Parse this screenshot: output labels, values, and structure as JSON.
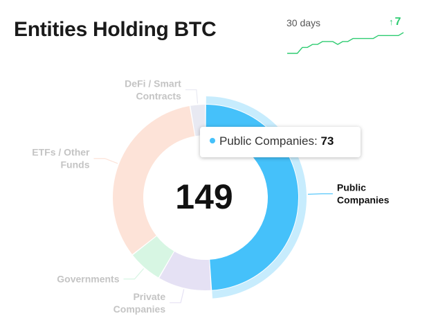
{
  "card": {
    "title": "Entities Holding BTC",
    "total": "149"
  },
  "sparkline": {
    "label": "30 days",
    "change": "7",
    "change_arrow": "↑",
    "color": "#2ecc71",
    "values": [
      142,
      142,
      142,
      144,
      144,
      145,
      145,
      146,
      146,
      146,
      145,
      146,
      146,
      147,
      147,
      147,
      147,
      147,
      148,
      148,
      148,
      148,
      148,
      149
    ]
  },
  "chart_data": {
    "type": "pie",
    "title": "Entities Holding BTC",
    "total": 149,
    "highlighted": "Public Companies",
    "series": [
      {
        "name": "Public Companies",
        "label_lines": [
          "Public",
          "Companies"
        ],
        "value": 73,
        "color": "#45c1fa",
        "label_color": "#111111"
      },
      {
        "name": "Private Companies",
        "label_lines": [
          "Private",
          "Companies"
        ],
        "value": 14,
        "color": "#e5e1f4",
        "label_color": "#c4c4c4"
      },
      {
        "name": "Governments",
        "label_lines": [
          "Governments"
        ],
        "value": 9,
        "color": "#d7f6e3",
        "label_color": "#c4c4c4"
      },
      {
        "name": "ETFs / Other Funds",
        "label_lines": [
          "ETFs / Other",
          "Funds"
        ],
        "value": 49,
        "color": "#fde3d8",
        "label_color": "#c4c4c4"
      },
      {
        "name": "DeFi / Smart Contracts",
        "label_lines": [
          "DeFi / Smart",
          "Contracts"
        ],
        "value": 4,
        "color": "#e8e9f2",
        "label_color": "#c4c4c4"
      }
    ]
  },
  "tooltip": {
    "label": "Public Companies",
    "value": "73",
    "separator": ": "
  }
}
